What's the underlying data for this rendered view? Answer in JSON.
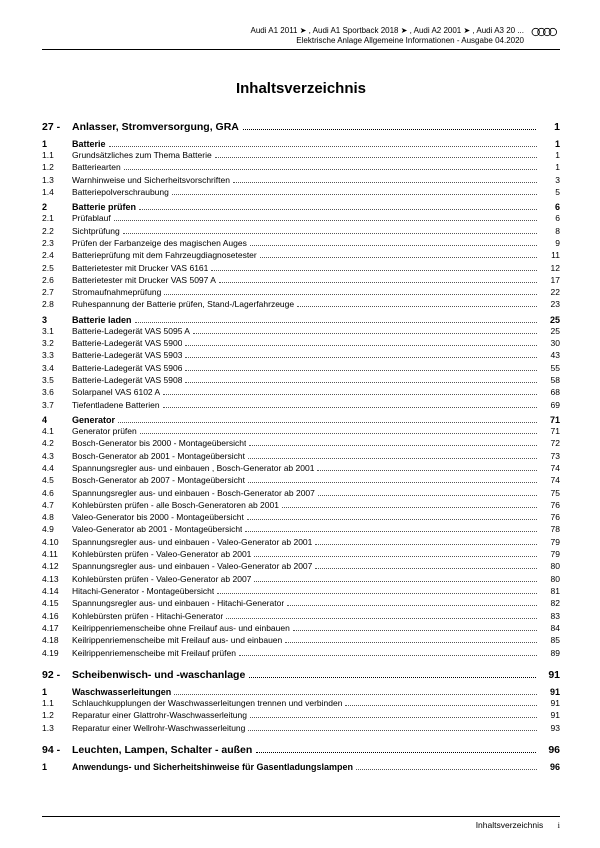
{
  "header": {
    "line1": "Audi A1 2011 ➤ , Audi A1 Sportback 2018 ➤ , Audi A2 2001 ➤ , Audi A3 20 ...",
    "line2": "Elektrische Anlage Allgemeine Informationen - Ausgabe 04.2020"
  },
  "title": "Inhaltsverzeichnis",
  "toc": [
    {
      "type": "chapter",
      "num": "27 -",
      "label": "Anlasser, Stromversorgung, GRA",
      "page": "1"
    },
    {
      "type": "section",
      "num": "1",
      "label": "Batterie",
      "page": "1"
    },
    {
      "type": "entry",
      "num": "1.1",
      "label": "Grundsätzliches zum Thema Batterie",
      "page": "1"
    },
    {
      "type": "entry",
      "num": "1.2",
      "label": "Batteriearten",
      "page": "1"
    },
    {
      "type": "entry",
      "num": "1.3",
      "label": "Warnhinweise und Sicherheitsvorschriften",
      "page": "3"
    },
    {
      "type": "entry",
      "num": "1.4",
      "label": "Batteriepolverschraubung",
      "page": "5"
    },
    {
      "type": "section",
      "num": "2",
      "label": "Batterie prüfen",
      "page": "6"
    },
    {
      "type": "entry",
      "num": "2.1",
      "label": "Prüfablauf",
      "page": "6"
    },
    {
      "type": "entry",
      "num": "2.2",
      "label": "Sichtprüfung",
      "page": "8"
    },
    {
      "type": "entry",
      "num": "2.3",
      "label": "Prüfen der Farbanzeige des magischen Auges",
      "page": "9"
    },
    {
      "type": "entry",
      "num": "2.4",
      "label": "Batterieprüfung mit dem Fahrzeugdiagnosetester",
      "page": "11"
    },
    {
      "type": "entry",
      "num": "2.5",
      "label": "Batterietester mit Drucker VAS 6161",
      "page": "12"
    },
    {
      "type": "entry",
      "num": "2.6",
      "label": "Batterietester mit Drucker VAS 5097 A",
      "page": "17"
    },
    {
      "type": "entry",
      "num": "2.7",
      "label": "Stromaufnahmeprüfung",
      "page": "22"
    },
    {
      "type": "entry",
      "num": "2.8",
      "label": "Ruhespannung der Batterie prüfen, Stand-/Lagerfahrzeuge",
      "page": "23"
    },
    {
      "type": "section",
      "num": "3",
      "label": "Batterie laden",
      "page": "25"
    },
    {
      "type": "entry",
      "num": "3.1",
      "label": "Batterie-Ladegerät VAS 5095 A",
      "page": "25"
    },
    {
      "type": "entry",
      "num": "3.2",
      "label": "Batterie-Ladegerät VAS 5900",
      "page": "30"
    },
    {
      "type": "entry",
      "num": "3.3",
      "label": "Batterie-Ladegerät VAS 5903",
      "page": "43"
    },
    {
      "type": "entry",
      "num": "3.4",
      "label": "Batterie-Ladegerät VAS 5906",
      "page": "55"
    },
    {
      "type": "entry",
      "num": "3.5",
      "label": "Batterie-Ladegerät VAS 5908",
      "page": "58"
    },
    {
      "type": "entry",
      "num": "3.6",
      "label": "Solarpanel VAS 6102 A",
      "page": "68"
    },
    {
      "type": "entry",
      "num": "3.7",
      "label": "Tiefentladene Batterien",
      "page": "69"
    },
    {
      "type": "section",
      "num": "4",
      "label": "Generator",
      "page": "71"
    },
    {
      "type": "entry",
      "num": "4.1",
      "label": "Generator prüfen",
      "page": "71"
    },
    {
      "type": "entry",
      "num": "4.2",
      "label": "Bosch-Generator bis 2000 - Montageübersicht",
      "page": "72"
    },
    {
      "type": "entry",
      "num": "4.3",
      "label": "Bosch-Generator ab 2001 - Montageübersicht",
      "page": "73"
    },
    {
      "type": "entry",
      "num": "4.4",
      "label": "Spannungsregler aus- und einbauen , Bosch-Generator ab 2001",
      "page": "74"
    },
    {
      "type": "entry",
      "num": "4.5",
      "label": "Bosch-Generator ab 2007 - Montageübersicht",
      "page": "74"
    },
    {
      "type": "entry",
      "num": "4.6",
      "label": "Spannungsregler aus- und einbauen - Bosch-Generator ab 2007",
      "page": "75"
    },
    {
      "type": "entry",
      "num": "4.7",
      "label": "Kohlebürsten prüfen - alle Bosch-Generatoren ab 2001",
      "page": "76"
    },
    {
      "type": "entry",
      "num": "4.8",
      "label": "Valeo-Generator bis 2000 - Montageübersicht",
      "page": "76"
    },
    {
      "type": "entry",
      "num": "4.9",
      "label": "Valeo-Generator ab 2001 - Montageübersicht",
      "page": "78"
    },
    {
      "type": "entry",
      "num": "4.10",
      "label": "Spannungsregler aus- und einbauen - Valeo-Generator ab 2001",
      "page": "79"
    },
    {
      "type": "entry",
      "num": "4.11",
      "label": "Kohlebürsten prüfen - Valeo-Generator ab 2001",
      "page": "79"
    },
    {
      "type": "entry",
      "num": "4.12",
      "label": "Spannungsregler aus- und einbauen - Valeo-Generator ab 2007",
      "page": "80"
    },
    {
      "type": "entry",
      "num": "4.13",
      "label": "Kohlebürsten prüfen - Valeo-Generator ab 2007",
      "page": "80"
    },
    {
      "type": "entry",
      "num": "4.14",
      "label": "Hitachi-Generator - Montageübersicht",
      "page": "81"
    },
    {
      "type": "entry",
      "num": "4.15",
      "label": "Spannungsregler aus- und einbauen - Hitachi-Generator",
      "page": "82"
    },
    {
      "type": "entry",
      "num": "4.16",
      "label": "Kohlebürsten prüfen - Hitachi-Generator",
      "page": "83"
    },
    {
      "type": "entry",
      "num": "4.17",
      "label": "Keilrippenriemenscheibe ohne Freilauf aus- und einbauen",
      "page": "84"
    },
    {
      "type": "entry",
      "num": "4.18",
      "label": "Keilrippenriemenscheibe mit Freilauf aus- und einbauen",
      "page": "85"
    },
    {
      "type": "entry",
      "num": "4.19",
      "label": "Keilrippenriemenscheibe mit Freilauf prüfen",
      "page": "89"
    },
    {
      "type": "chapter",
      "num": "92 -",
      "label": "Scheibenwisch- und -waschanlage",
      "page": "91"
    },
    {
      "type": "section",
      "num": "1",
      "label": "Waschwasserleitungen",
      "page": "91"
    },
    {
      "type": "entry",
      "num": "1.1",
      "label": "Schlauchkupplungen der Waschwasserleitungen trennen und verbinden",
      "page": "91"
    },
    {
      "type": "entry",
      "num": "1.2",
      "label": "Reparatur einer Glattrohr-Waschwasserleitung",
      "page": "91"
    },
    {
      "type": "entry",
      "num": "1.3",
      "label": "Reparatur einer Wellrohr-Waschwasserleitung",
      "page": "93"
    },
    {
      "type": "chapter",
      "num": "94 -",
      "label": "Leuchten, Lampen, Schalter - außen",
      "page": "96"
    },
    {
      "type": "section",
      "num": "1",
      "label": "Anwendungs- und Sicherheitshinweise für Gasentladungslampen",
      "page": "96"
    }
  ],
  "footer": {
    "label": "Inhaltsverzeichnis",
    "roman": "i"
  },
  "colors": {
    "text": "#000000",
    "bg": "#ffffff"
  }
}
